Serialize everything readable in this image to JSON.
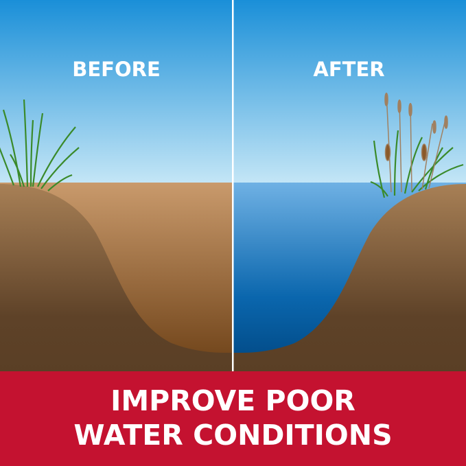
{
  "labels": {
    "before": "BEFORE",
    "after": "AFTER"
  },
  "banner": {
    "line1": "IMPROVE POOR",
    "line2": "WATER CONDITIONS"
  },
  "colors": {
    "banner": "#c41230",
    "sky_top": "#1a8fd8",
    "sky_bottom": "#c4e6f6",
    "water_top": "#6fb1e4",
    "water_bottom": "#00457f",
    "muddy_top": "#c99a6c",
    "muddy_bottom": "#6a3e14",
    "soil_top": "#a88056",
    "soil_bottom": "#5a3f25",
    "grass": "#3a8a2a"
  }
}
